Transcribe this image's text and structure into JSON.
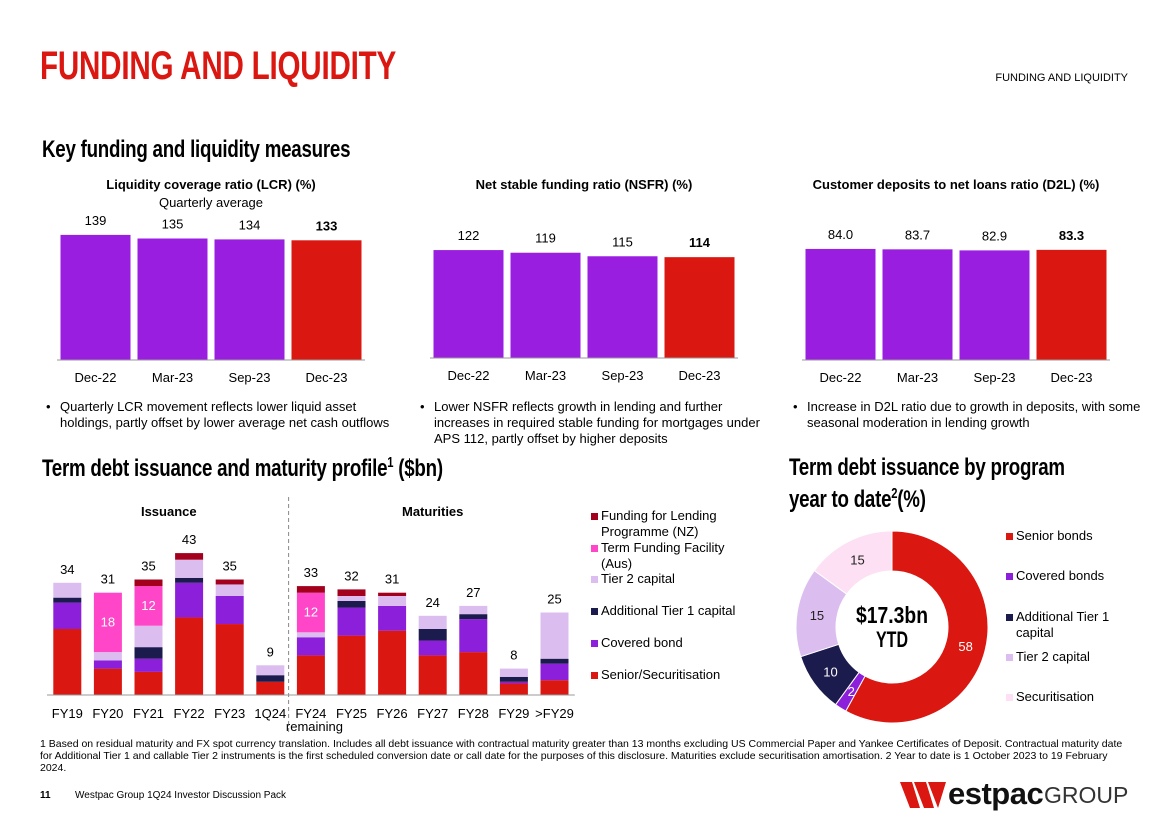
{
  "header": {
    "title": "FUNDING AND LIQUIDITY",
    "tag": "FUNDING AND LIQUIDITY"
  },
  "section_title": "Key funding and liquidity measures",
  "chart_data": [
    {
      "type": "bar",
      "title": "Liquidity coverage ratio (LCR) (%)",
      "subtitle": "Quarterly average",
      "categories": [
        "Dec-22",
        "Mar-23",
        "Sep-23",
        "Dec-23"
      ],
      "values": [
        139,
        135,
        134,
        133
      ],
      "colors": [
        "#9a1ee0",
        "#9a1ee0",
        "#9a1ee0",
        "#da1710"
      ],
      "ylim": [
        0,
        150
      ]
    },
    {
      "type": "bar",
      "title": "Net stable funding ratio (NSFR) (%)",
      "categories": [
        "Dec-22",
        "Mar-23",
        "Sep-23",
        "Dec-23"
      ],
      "values": [
        122,
        119,
        115,
        114
      ],
      "colors": [
        "#9a1ee0",
        "#9a1ee0",
        "#9a1ee0",
        "#da1710"
      ],
      "ylim": [
        0,
        130
      ]
    },
    {
      "type": "bar",
      "title": "Customer deposits to net loans ratio (D2L) (%)",
      "categories": [
        "Dec-22",
        "Mar-23",
        "Sep-23",
        "Dec-23"
      ],
      "values": [
        84.0,
        83.7,
        82.9,
        83.3
      ],
      "value_labels": [
        "84.0",
        "83.7",
        "82.9",
        "83.3"
      ],
      "colors": [
        "#9a1ee0",
        "#9a1ee0",
        "#9a1ee0",
        "#da1710"
      ],
      "ylim": [
        0,
        90
      ]
    },
    {
      "type": "stacked_bar",
      "title": "Term debt issuance and maturity profile",
      "title_note": "1",
      "title_suffix": "($bn)",
      "groups": [
        {
          "name": "Issuance",
          "start": 0
        },
        {
          "name": "Maturities",
          "start": 6
        }
      ],
      "categories": [
        "FY19",
        "FY20",
        "FY21",
        "FY22",
        "FY23",
        "1Q24",
        "FY24\nremaining",
        "FY25",
        "FY26",
        "FY27",
        "FY28",
        "FY29",
        ">FY29"
      ],
      "totals": [
        34,
        31,
        35,
        43,
        35,
        9,
        33,
        32,
        31,
        24,
        27,
        8,
        25
      ],
      "series": [
        {
          "name": "Senior/Securitisation",
          "color": "#da1710",
          "values": [
            20,
            8,
            7,
            23.5,
            21.5,
            4,
            12,
            18,
            19.5,
            12,
            13,
            3.5,
            4.5
          ]
        },
        {
          "name": "Covered bond",
          "color": "#8c1fd9",
          "values": [
            8,
            2.5,
            4,
            10.5,
            8.5,
            0,
            5.5,
            8.5,
            7.5,
            4.5,
            10,
            0.5,
            5
          ]
        },
        {
          "name": "Additional Tier 1 capital",
          "color": "#1c1b4d",
          "values": [
            1.5,
            0,
            3.5,
            1.5,
            0,
            2,
            0,
            2,
            0,
            3.5,
            1.5,
            1.5,
            1.5
          ]
        },
        {
          "name": "Tier 2 capital",
          "color": "#dcbdf0",
          "values": [
            4.5,
            2.5,
            6.5,
            5.5,
            3.5,
            3,
            1.5,
            1.5,
            3,
            4,
            2.5,
            2.5,
            14
          ]
        },
        {
          "name": "Term Funding Facility (Aus)",
          "color": "#ff45c8",
          "values": [
            0,
            18,
            12,
            0,
            0,
            0,
            12,
            0,
            0,
            0,
            0,
            0,
            0
          ],
          "value_labels": [
            null,
            "18",
            "12",
            null,
            null,
            null,
            "12",
            null,
            null,
            null,
            null,
            null,
            null
          ]
        },
        {
          "name": "Funding for Lending Programme (NZ)",
          "color": "#a3001e",
          "values": [
            0,
            0,
            2,
            2,
            1.5,
            0,
            2,
            2,
            1,
            0,
            0,
            0,
            0
          ]
        }
      ],
      "ylim": [
        0,
        45
      ]
    },
    {
      "type": "donut",
      "title": "Term debt issuance by program",
      "title_line2": "year to date",
      "title_note": "2",
      "title_suffix": "(%)",
      "center_label": "$17.3bn",
      "center_sublabel": "YTD",
      "categories": [
        "Senior bonds",
        "Covered bonds",
        "Additional Tier 1 capital",
        "Tier 2 capital",
        "Securitisation"
      ],
      "values": [
        58,
        2,
        10,
        15,
        15
      ],
      "colors": [
        "#da1710",
        "#8c1fd9",
        "#1c1b4d",
        "#dcbdf0",
        "#fde0f3"
      ]
    }
  ],
  "bullets": [
    "Quarterly LCR movement reflects lower liquid asset holdings, partly offset by lower average net cash outflows",
    "Lower NSFR reflects growth in lending and further increases in required stable funding for mortgages under APS 112, partly offset by higher deposits",
    "Increase in D2L ratio due to growth in deposits, with some seasonal moderation in lending growth"
  ],
  "footnote": "1 Based on residual maturity and FX spot currency translation. Includes all debt issuance with contractual maturity greater than 13 months excluding US Commercial Paper and Yankee Certificates of Deposit. Contractual maturity date for Additional Tier 1 and callable Tier 2 instruments is the first scheduled conversion date or call date for the purposes of this disclosure. Maturities exclude securitisation amortisation. 2 Year to date is 1 October 2023 to 19 February 2024.",
  "footer": {
    "page": "11",
    "text": "Westpac Group 1Q24 Investor Discussion Pack",
    "logo_word": "estpac",
    "logo_suffix": "GROUP"
  }
}
